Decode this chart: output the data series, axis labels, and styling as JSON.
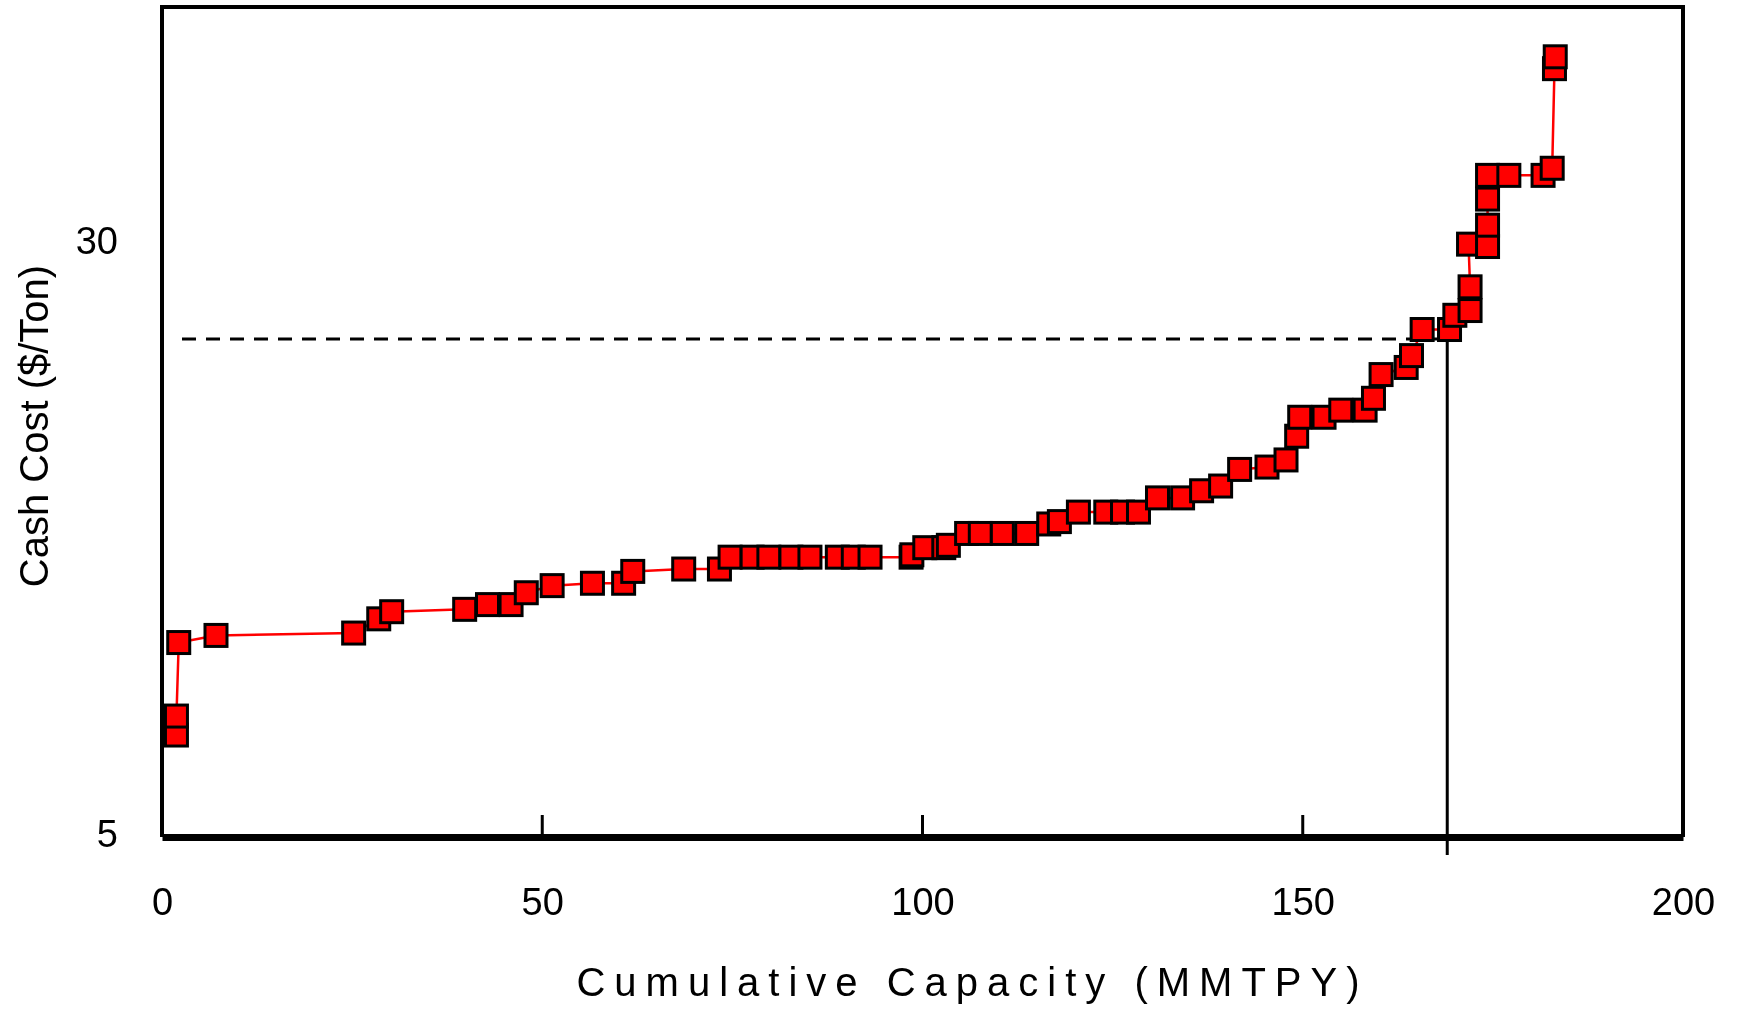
{
  "chart_data": {
    "type": "line",
    "xlabel": "Cumulative Capacity (MMTPY)",
    "ylabel": "Cash Cost ($/Ton)",
    "xlim": [
      0,
      200
    ],
    "xticks": [
      0,
      50,
      100,
      150,
      200
    ],
    "ylim": [
      5,
      40
    ],
    "yticks": [
      5,
      30
    ],
    "marker": "square",
    "line_style": "solid",
    "series": [
      {
        "color": "#ff0000",
        "x": [
          1.9,
          1.9,
          2.2,
          7.1,
          25.2,
          28.5,
          30.2,
          39.8,
          42.8,
          45.9,
          47.9,
          51.3,
          56.6,
          60.7,
          61.9,
          68.6,
          73.3,
          74.7,
          77.6,
          79.8,
          82.7,
          85.2,
          88.8,
          90.9,
          93.1,
          98.5,
          98.6,
          100.3,
          102.8,
          103.4,
          105.8,
          107.6,
          110.5,
          113.7,
          116.6,
          118.0,
          120.5,
          124.1,
          126.3,
          128.4,
          130.9,
          134.2,
          136.7,
          139.2,
          141.7,
          145.3,
          147.8,
          149.2,
          149.6,
          152.8,
          155.0,
          158.2,
          159.3,
          160.3,
          163.6,
          164.3,
          165.7,
          169.3,
          170.0,
          172.0,
          172.0,
          171.8,
          174.3,
          174.3,
          174.3,
          174.3,
          177.1,
          181.6,
          182.8,
          183.1,
          183.2
        ],
        "values": [
          9.3,
          10.1,
          13.2,
          13.5,
          13.6,
          14.2,
          14.5,
          14.6,
          14.8,
          14.8,
          15.3,
          15.6,
          15.7,
          15.7,
          16.2,
          16.3,
          16.3,
          16.8,
          16.8,
          16.8,
          16.8,
          16.8,
          16.8,
          16.8,
          16.8,
          16.8,
          16.9,
          17.2,
          17.2,
          17.3,
          17.8,
          17.8,
          17.8,
          17.8,
          18.2,
          18.3,
          18.7,
          18.7,
          18.7,
          18.7,
          19.3,
          19.3,
          19.6,
          19.8,
          20.5,
          20.6,
          20.9,
          21.9,
          22.7,
          22.7,
          23.0,
          23.0,
          23.5,
          24.5,
          24.8,
          25.3,
          26.4,
          26.4,
          27.0,
          27.2,
          28.2,
          30.0,
          29.9,
          30.8,
          31.9,
          32.9,
          32.9,
          32.9,
          33.2,
          37.4,
          37.9
        ]
      }
    ],
    "ref_lines": [
      {
        "axis": "y",
        "value": 26,
        "line_style": "dashed",
        "color": "#000000"
      },
      {
        "axis": "x",
        "value": 169,
        "line_style": "solid",
        "color": "#000000"
      }
    ]
  }
}
